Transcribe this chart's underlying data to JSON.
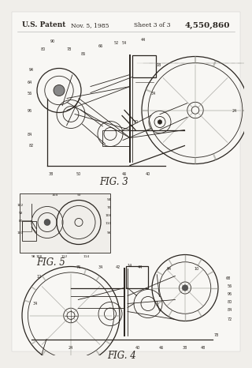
{
  "background_color": "#f0eeea",
  "page_bg": "#f5f3ef",
  "dark": "#2a2520",
  "gray": "#888880",
  "light_gray": "#cccccc",
  "header_text": "U.S. Patent",
  "header_date": "Nov. 5, 1985",
  "header_sheet": "Sheet 3 of 3",
  "header_patent": "4,550,860",
  "fig3_label": "FIG. 3",
  "fig4_label": "FIG. 4",
  "fig5_label": "FIG. 5"
}
